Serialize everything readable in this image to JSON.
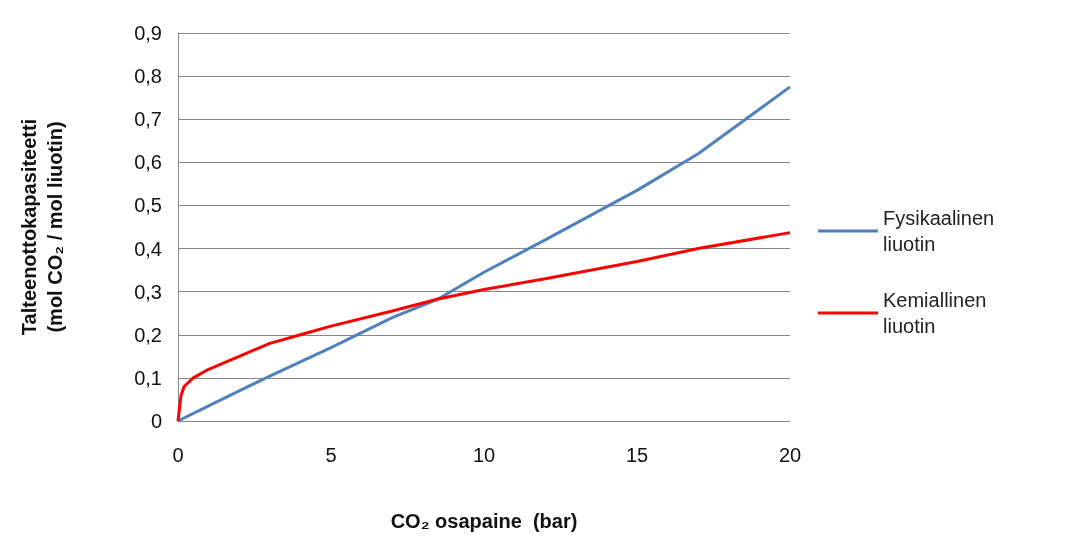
{
  "chart_data": {
    "type": "line",
    "xlabel": "CO₂ osapaine  (bar)",
    "ylabel": "Talteenottokapasiteetti\n(mol CO₂ / mol liuotin)",
    "xlim": [
      0,
      20
    ],
    "xticks": [
      0,
      5,
      10,
      15,
      20
    ],
    "ylim": [
      0,
      0.9
    ],
    "yticks": [
      0,
      {
        "value": 0.1,
        "label": "0,1"
      },
      {
        "value": 0.2,
        "label": "0,2"
      },
      {
        "value": 0.3,
        "label": "0,3"
      },
      {
        "value": 0.4,
        "label": "0,4"
      },
      {
        "value": 0.5,
        "label": "0,5"
      },
      {
        "value": 0.6,
        "label": "0,6"
      },
      {
        "value": 0.7,
        "label": "0,7"
      },
      {
        "value": 0.8,
        "label": "0,8"
      },
      {
        "value": 0.9,
        "label": "0,9"
      }
    ],
    "grid": "y",
    "legend": "right",
    "marker": "none",
    "line_style": "solid",
    "series": [
      {
        "name": "Fysikaalinen liuotin",
        "color": "#4f81bd",
        "x": [
          0,
          1,
          2,
          3,
          5,
          7,
          8.5,
          10,
          12,
          15,
          17,
          20
        ],
        "values": [
          0,
          0.035,
          0.07,
          0.104,
          0.17,
          0.24,
          0.283,
          0.345,
          0.42,
          0.535,
          0.62,
          0.775
        ]
      },
      {
        "name": "Kemiallinen liuotin",
        "color": "#ff0000",
        "x": [
          0,
          0.1,
          0.2,
          0.5,
          1,
          2,
          3,
          4,
          5,
          7,
          8.5,
          10,
          12,
          15,
          17,
          20
        ],
        "values": [
          0,
          0.06,
          0.08,
          0.1,
          0.12,
          0.15,
          0.18,
          0.2,
          0.22,
          0.255,
          0.283,
          0.305,
          0.33,
          0.37,
          0.4,
          0.437
        ]
      }
    ]
  }
}
